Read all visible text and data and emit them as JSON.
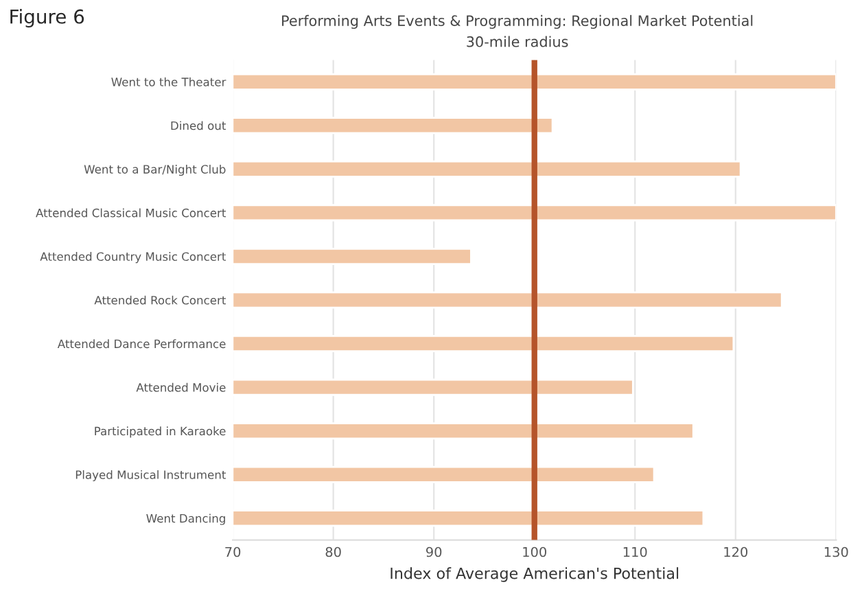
{
  "chart_data": {
    "type": "bar",
    "orientation": "horizontal",
    "title": "Performing Arts Events & Programming: Regional Market Potential",
    "subtitle": "30-mile radius",
    "xlabel": "Index of Average American's Potential",
    "categories": [
      "Went to the Theater",
      "Dined out",
      "Went to a Bar/Night Club",
      "Attended Classical Music Concert",
      "Attended Country Music Concert",
      "Attended Rock Concert",
      "Attended Dance Performance",
      "Attended Movie",
      "Participated in Karaoke",
      "Played Musical Instrument",
      "Went Dancing"
    ],
    "values": [
      130,
      101.8,
      120.5,
      130,
      93.7,
      124.6,
      119.8,
      109.8,
      115.8,
      111.9,
      116.8
    ],
    "color": "#f2c6a4",
    "xlim": [
      70,
      130
    ],
    "xticks": [
      70,
      80,
      90,
      100,
      110,
      120,
      130
    ],
    "grid": "x",
    "ref_lines": [
      {
        "axis": "x",
        "value": 100,
        "color": "#b5542a"
      }
    ],
    "annotations": [
      "Figure 6"
    ]
  }
}
